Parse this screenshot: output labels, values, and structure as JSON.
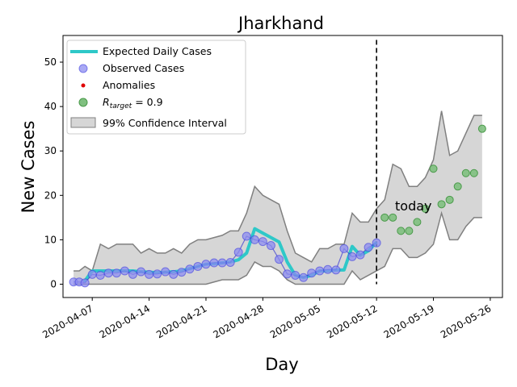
{
  "chart_data": {
    "type": "line",
    "title": "Jharkhand",
    "xlabel": "Day",
    "ylabel": "New Cases",
    "ylim": [
      -3,
      56
    ],
    "y_ticks": [
      0,
      10,
      20,
      30,
      40,
      50
    ],
    "x_ticks": [
      {
        "label": "2020-04-07",
        "day": 7
      },
      {
        "label": "2020-04-14",
        "day": 14
      },
      {
        "label": "2020-04-21",
        "day": 21
      },
      {
        "label": "2020-04-28",
        "day": 28
      },
      {
        "label": "2020-05-05",
        "day": 35
      },
      {
        "label": "2020-05-12",
        "day": 42
      },
      {
        "label": "2020-05-19",
        "day": 49
      },
      {
        "label": "2020-05-26",
        "day": 56
      }
    ],
    "xlim_days": [
      4.7,
      57.5
    ],
    "today_day": 42,
    "today_label": "today",
    "legend": {
      "placement": "top-left",
      "expected": "Expected Daily Cases",
      "observed": "Observed Cases",
      "anomalies": "Anomalies",
      "target": "R_target = 0.9",
      "target_prefix": "R",
      "target_sub": "target",
      "target_suffix": " = 0.9",
      "ci": "99% Confidence Interval"
    },
    "colors": {
      "expected": "#2ec8c8",
      "observed_fill": "#8c8cf0",
      "observed_edge": "#4040e0",
      "observed_connector": "#2020d0",
      "anomaly": "#e00000",
      "target_fill": "#80c080",
      "target_edge": "#4a9a4a",
      "ci_fill": "#d6d6d6",
      "ci_edge": "#808080",
      "today_line": "#000000"
    },
    "series": [
      {
        "name": "Expected Daily Cases",
        "days": [
          6,
          7,
          8,
          9,
          10,
          11,
          12,
          13,
          14,
          15,
          16,
          17,
          18,
          19,
          20,
          21,
          22,
          23,
          24,
          25,
          26,
          27,
          28,
          29,
          30,
          31,
          32,
          33,
          34,
          35,
          36,
          37,
          38,
          39,
          40,
          41,
          42
        ],
        "values": [
          0.5,
          3,
          3,
          3,
          3,
          3,
          3,
          2.8,
          2.7,
          2.6,
          2.7,
          2.8,
          3,
          3.5,
          4,
          4.5,
          4.6,
          4.8,
          5,
          5.5,
          7,
          12.5,
          11.5,
          10.5,
          9.5,
          5,
          2,
          1.5,
          2,
          3,
          3,
          3.2,
          3.2,
          8.5,
          6.5,
          7.5,
          9.5
        ]
      },
      {
        "name": "Observed Cases",
        "days": [
          4.7,
          5.4,
          6.1,
          7,
          8,
          9,
          10,
          11,
          12,
          13,
          14,
          15,
          16,
          17,
          18,
          19,
          20,
          21,
          22,
          23,
          24,
          25,
          26,
          27,
          28,
          29,
          30,
          31,
          32,
          33,
          34,
          35,
          36,
          37,
          38,
          39,
          40,
          41,
          42
        ],
        "values": [
          0.5,
          0.5,
          0.3,
          2.2,
          2,
          2.5,
          2.5,
          3,
          2.2,
          2.8,
          2.2,
          2.3,
          2.8,
          2.2,
          2.7,
          3.4,
          4,
          4.5,
          4.8,
          4.8,
          4.9,
          7.2,
          10.8,
          10,
          9.6,
          8.7,
          5.6,
          2.3,
          2,
          1.5,
          2.5,
          3,
          3.3,
          3.2,
          8,
          6.2,
          6.6,
          8.3,
          9.3
        ]
      },
      {
        "name": "R_target = 0.9",
        "days": [
          43,
          44,
          45,
          46,
          47,
          48,
          49,
          50,
          51,
          52,
          53,
          54,
          55
        ],
        "values": [
          15,
          15,
          12,
          12,
          14,
          17,
          26,
          18,
          19,
          22,
          25,
          25,
          35
        ]
      },
      {
        "name": "99% Confidence Interval",
        "days": [
          4.7,
          5.4,
          6.1,
          7,
          8,
          9,
          10,
          11,
          12,
          13,
          14,
          15,
          16,
          17,
          18,
          19,
          20,
          21,
          22,
          23,
          24,
          25,
          26,
          27,
          28,
          29,
          30,
          31,
          32,
          33,
          34,
          35,
          36,
          37,
          38,
          39,
          40,
          41,
          42,
          43,
          44,
          45,
          46,
          47,
          48,
          49,
          50,
          51,
          52,
          53,
          54,
          55
        ],
        "upper": [
          3,
          3,
          4,
          3,
          9,
          8,
          9,
          9,
          9,
          7,
          8,
          7,
          7,
          8,
          7,
          9,
          10,
          10,
          10.5,
          11,
          12,
          12,
          16,
          22,
          20,
          19,
          18,
          12,
          7,
          6,
          5,
          8,
          8,
          9,
          9,
          16,
          14,
          14,
          17,
          19,
          27,
          26,
          22,
          22,
          24,
          28,
          39,
          29,
          30,
          34,
          38,
          38
        ],
        "lower": [
          0,
          0,
          0,
          0,
          0,
          0,
          0,
          0,
          0,
          0,
          0,
          0,
          0,
          0,
          0,
          0,
          0,
          0,
          0.5,
          1,
          1,
          1,
          2,
          5,
          4,
          4,
          3,
          1,
          0,
          0,
          0,
          0,
          0,
          0,
          0,
          3,
          1,
          2,
          3,
          4,
          8,
          8,
          6,
          6,
          7,
          9,
          16,
          10,
          10,
          13,
          15,
          15
        ]
      }
    ]
  }
}
